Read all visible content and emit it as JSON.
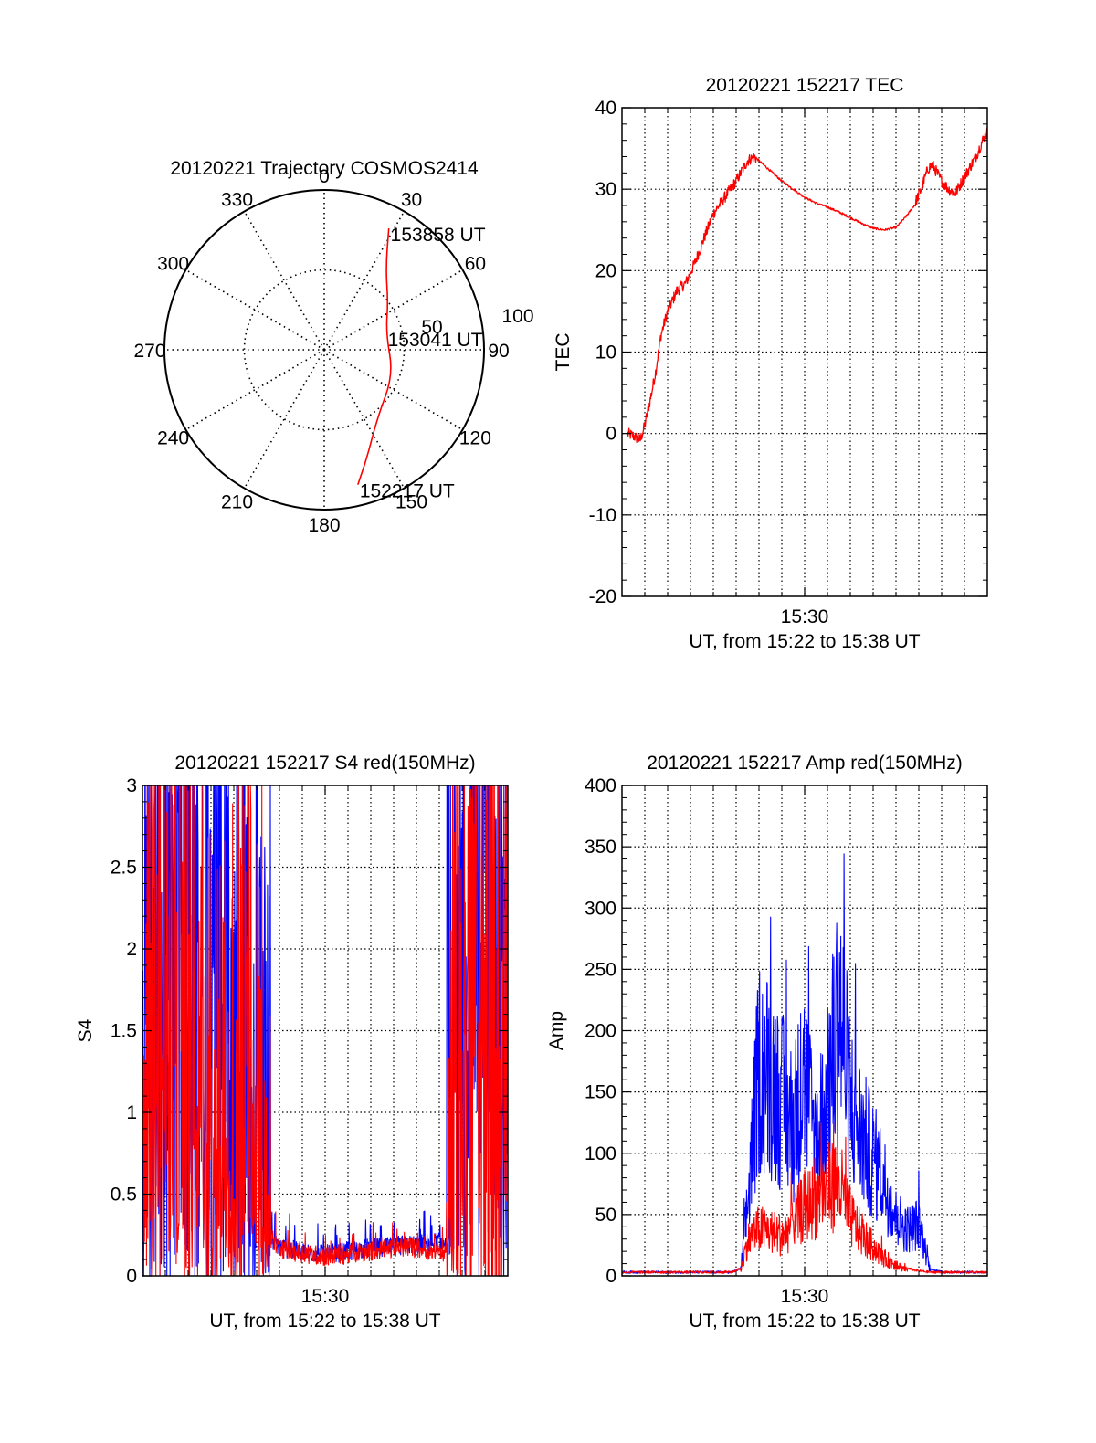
{
  "colors": {
    "red": "#ff0000",
    "blue": "#0000ff",
    "axis": "#000000",
    "grid": "#000000"
  },
  "chart_data": [
    {
      "type": "polar",
      "title": "20120221 Trajectory COSMOS2414",
      "azimuth_labels": [
        "0",
        "30",
        "60",
        "90",
        "120",
        "150",
        "180",
        "210",
        "240",
        "270",
        "300",
        "330"
      ],
      "radial_labels": [
        "50",
        "100"
      ],
      "zenith_max": 100,
      "track": {
        "color": "red",
        "points": [
          {
            "az": 166,
            "zen": 87
          },
          {
            "az": 158,
            "zen": 72
          },
          {
            "az": 142,
            "zen": 54
          },
          {
            "az": 110,
            "zen": 46
          },
          {
            "az": 75,
            "zen": 40
          },
          {
            "az": 53,
            "zen": 50
          },
          {
            "az": 37,
            "zen": 64
          },
          {
            "az": 28,
            "zen": 86
          }
        ]
      },
      "annotations": [
        {
          "text": "153858 UT",
          "az": 28,
          "zen": 86
        },
        {
          "text": "153041 UT",
          "az": 75,
          "zen": 40
        },
        {
          "text": "152217 UT",
          "az": 166,
          "zen": 87
        }
      ]
    },
    {
      "type": "line",
      "title": "20120221 152217 TEC",
      "xlabel": "UT, from 15:22 to 15:38 UT",
      "ylabel": "TEC",
      "xtick_label": "15:30",
      "xlim": [
        0,
        16
      ],
      "ylim": [
        -20,
        40
      ],
      "yticks": [
        -20,
        -10,
        0,
        10,
        20,
        30,
        40
      ],
      "series": [
        {
          "color": "red",
          "x": [
            0.25,
            0.5,
            0.8,
            1.0,
            1.3,
            1.5,
            1.7,
            2.0,
            2.4,
            2.8,
            3.2,
            3.6,
            4.0,
            4.5,
            5.0,
            5.2,
            5.5,
            5.8,
            6.2,
            6.6,
            7.0,
            7.5,
            8.0,
            8.5,
            9.0,
            9.5,
            10.0,
            10.5,
            11.0,
            11.5,
            12.0,
            12.4,
            12.8,
            13.1,
            13.4,
            13.6,
            13.8,
            14.0,
            14.3,
            14.6,
            14.9,
            15.2,
            15.5,
            15.8,
            16.0
          ],
          "y": [
            0.0,
            -0.3,
            -0.8,
            1.0,
            5.0,
            8.0,
            12.0,
            15.0,
            17.5,
            18.5,
            21.0,
            24.0,
            27.0,
            29.0,
            31.0,
            32.0,
            33.5,
            34.0,
            33.0,
            32.0,
            31.0,
            30.0,
            29.0,
            28.3,
            27.8,
            27.2,
            26.5,
            25.8,
            25.2,
            25.0,
            25.3,
            26.5,
            28.0,
            30.0,
            32.5,
            33.0,
            32.0,
            31.0,
            30.0,
            29.5,
            31.0,
            32.5,
            34.0,
            36.0,
            37.0
          ]
        }
      ]
    },
    {
      "type": "line",
      "title": "20120221 152217 S4 red(150MHz)",
      "xlabel": "UT, from 15:22 to 15:38 UT",
      "ylabel": "S4",
      "xtick_label": "15:30",
      "xlim": [
        0,
        16
      ],
      "ylim": [
        0,
        3
      ],
      "yticks": [
        "0",
        "0.5",
        "1",
        "1.5",
        "2",
        "2.5",
        "3"
      ],
      "series": [
        {
          "color": "blue",
          "x": [
            0.0,
            0.5,
            1.0,
            1.5,
            2.0,
            2.5,
            3.0,
            3.5,
            4.0,
            4.5,
            5.0,
            5.5,
            6.0,
            6.5,
            7.0,
            7.5,
            8.0,
            8.5,
            9.0,
            9.5,
            10.0,
            10.5,
            11.0,
            11.5,
            12.0,
            12.5,
            13.0,
            13.3,
            13.6,
            14.0,
            14.5,
            15.0,
            15.5,
            16.0
          ],
          "y": [
            1.9,
            1.8,
            1.9,
            1.75,
            1.8,
            1.6,
            1.7,
            1.6,
            1.4,
            1.2,
            1.0,
            0.25,
            0.18,
            0.16,
            0.15,
            0.14,
            0.13,
            0.14,
            0.15,
            0.16,
            0.17,
            0.17,
            0.18,
            0.19,
            0.19,
            0.2,
            0.21,
            0.18,
            0.8,
            1.8,
            2.2,
            2.3,
            2.4,
            2.5
          ]
        },
        {
          "color": "red",
          "x": [
            0.0,
            0.5,
            1.0,
            1.5,
            2.0,
            2.5,
            3.0,
            3.5,
            4.0,
            4.5,
            5.0,
            5.5,
            6.0,
            6.5,
            7.0,
            7.5,
            8.0,
            8.5,
            9.0,
            9.5,
            10.0,
            10.5,
            11.0,
            11.5,
            12.0,
            12.5,
            13.0,
            13.3,
            13.6,
            14.0,
            14.5,
            15.0,
            15.5,
            16.0
          ],
          "y": [
            1.3,
            1.2,
            1.1,
            1.0,
            0.9,
            0.85,
            0.8,
            0.75,
            0.6,
            0.5,
            0.4,
            0.22,
            0.17,
            0.15,
            0.14,
            0.13,
            0.12,
            0.13,
            0.13,
            0.14,
            0.15,
            0.16,
            0.17,
            0.18,
            0.17,
            0.16,
            0.15,
            0.12,
            0.6,
            1.3,
            1.5,
            1.6,
            1.8,
            2.0
          ]
        }
      ]
    },
    {
      "type": "line",
      "title": "20120221 152217 Amp red(150MHz)",
      "xlabel": "UT, from 15:22 to 15:38 UT",
      "ylabel": "Amp",
      "xtick_label": "15:30",
      "xlim": [
        0,
        16
      ],
      "ylim": [
        0,
        400
      ],
      "yticks": [
        0,
        50,
        100,
        150,
        200,
        250,
        300,
        350,
        400
      ],
      "series": [
        {
          "color": "blue",
          "x": [
            0.0,
            1.0,
            2.0,
            3.0,
            4.0,
            4.8,
            5.2,
            5.5,
            6.0,
            6.5,
            7.0,
            7.5,
            8.0,
            8.5,
            9.0,
            9.5,
            10.0,
            10.5,
            11.0,
            11.5,
            12.0,
            12.5,
            13.0,
            13.5,
            14.0,
            15.0,
            16.0
          ],
          "y": [
            2,
            2,
            2,
            2,
            2,
            2,
            5,
            60,
            180,
            170,
            150,
            130,
            170,
            110,
            150,
            230,
            150,
            120,
            100,
            80,
            50,
            40,
            45,
            5,
            2,
            2,
            2
          ]
        },
        {
          "color": "red",
          "x": [
            0.0,
            1.0,
            2.0,
            3.0,
            4.0,
            4.8,
            5.2,
            5.5,
            6.0,
            6.5,
            7.0,
            7.5,
            8.0,
            8.5,
            9.0,
            9.5,
            10.0,
            10.5,
            11.0,
            11.5,
            12.0,
            12.5,
            13.0,
            13.5,
            14.0,
            15.0,
            16.0
          ],
          "y": [
            2,
            2,
            2,
            2,
            2,
            2,
            5,
            30,
            40,
            38,
            35,
            45,
            60,
            65,
            75,
            80,
            50,
            35,
            25,
            15,
            10,
            5,
            3,
            2,
            2,
            2,
            2
          ]
        }
      ]
    }
  ]
}
